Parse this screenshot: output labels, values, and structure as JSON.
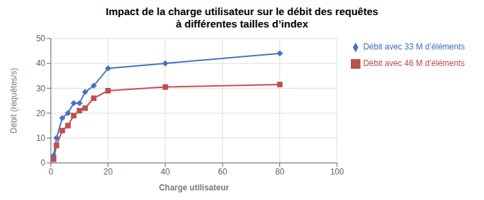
{
  "chart_data": {
    "type": "line",
    "title": "Impact de la charge utilisateur sur le débit des requêtes\nà différentes tailles d’index",
    "x_label": "Charge utilisateur",
    "y_label": "Débit (requêtes/s)",
    "x": [
      1,
      2,
      4,
      6,
      8,
      10,
      12,
      15,
      20,
      40,
      80
    ],
    "series": [
      {
        "name": "Débit avec 33 M d’éléments",
        "color": "#4472C4",
        "marker": "diamond",
        "values": [
          3,
          10,
          18,
          20,
          24,
          24,
          28.5,
          31,
          38,
          40,
          44
        ]
      },
      {
        "name": "Débit avec 46 M d’éléments",
        "color": "#C0504D",
        "marker": "square",
        "values": [
          1.5,
          7,
          13,
          15,
          19,
          21,
          22,
          26,
          29,
          30.5,
          31.5
        ]
      }
    ],
    "xlim": [
      0,
      100
    ],
    "ylim": [
      0,
      50
    ],
    "xticks": [
      0,
      20,
      40,
      60,
      80,
      100
    ],
    "yticks": [
      0,
      10,
      20,
      30,
      40,
      50
    ],
    "grid": true,
    "legend": "right"
  }
}
